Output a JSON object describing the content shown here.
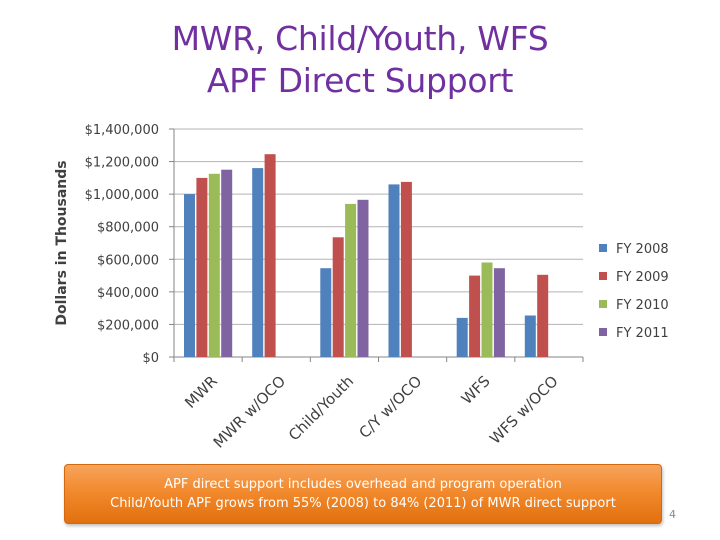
{
  "slide": {
    "title_line1": "MWR, Child/Youth, WFS",
    "title_line2": "APF Direct Support",
    "callout_line1": "APF direct support includes overhead and program operation",
    "callout_line2": "Child/Youth APF grows from 55% (2008) to 84% (2011) of MWR direct support",
    "page_number": "4"
  },
  "chart_data": {
    "type": "bar",
    "ylabel": "Dollars in Thousands",
    "categories": [
      "MWR",
      "MWR w/OCO",
      "Child/Youth",
      "C/Y w/OCO",
      "WFS",
      "WFS w/OCO"
    ],
    "series": [
      {
        "name": "FY 2008",
        "color": "#4f81bd",
        "values": [
          1000000,
          1160000,
          545000,
          1060000,
          240000,
          255000
        ]
      },
      {
        "name": "FY 2009",
        "color": "#c0504d",
        "values": [
          1100000,
          1245000,
          735000,
          1075000,
          500000,
          505000
        ]
      },
      {
        "name": "FY 2010",
        "color": "#9bbb59",
        "values": [
          1125000,
          null,
          940000,
          null,
          580000,
          null
        ]
      },
      {
        "name": "FY 2011",
        "color": "#8064a2",
        "values": [
          1150000,
          null,
          965000,
          null,
          545000,
          null
        ]
      }
    ],
    "ylim": [
      0,
      1400000
    ],
    "yticks": [
      0,
      200000,
      400000,
      600000,
      800000,
      1000000,
      1200000,
      1400000
    ],
    "ytick_labels": [
      "$0",
      "$200,000",
      "$400,000",
      "$600,000",
      "$800,000",
      "$1,000,000",
      "$1,200,000",
      "$1,400,000"
    ],
    "grid": true,
    "legend_position": "right"
  }
}
